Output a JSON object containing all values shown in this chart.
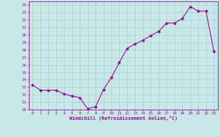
{
  "x": [
    0,
    1,
    2,
    3,
    4,
    5,
    6,
    7,
    8,
    9,
    10,
    11,
    12,
    13,
    14,
    15,
    16,
    17,
    18,
    19,
    20,
    21,
    22,
    23
  ],
  "y": [
    13.3,
    12.6,
    12.6,
    12.6,
    12.1,
    11.8,
    11.6,
    10.1,
    10.4,
    12.7,
    14.3,
    16.3,
    18.2,
    18.8,
    19.3,
    19.9,
    20.5,
    21.6,
    21.6,
    22.2,
    23.8,
    23.2,
    23.2,
    17.8
  ],
  "line_color": "#990099",
  "marker": "D",
  "marker_size": 2.0,
  "bg_color": "#c8e8e8",
  "grid_color": "#aacccc",
  "xlabel": "Windchill (Refroidissement éolien,°C)",
  "yticks": [
    10,
    11,
    12,
    13,
    14,
    15,
    16,
    17,
    18,
    19,
    20,
    21,
    22,
    23,
    24
  ],
  "xticks": [
    0,
    1,
    2,
    3,
    4,
    5,
    6,
    7,
    8,
    9,
    10,
    11,
    12,
    13,
    14,
    15,
    16,
    17,
    18,
    19,
    20,
    21,
    22,
    23
  ],
  "xlim": [
    -0.5,
    23.5
  ],
  "ylim": [
    10,
    24.5
  ],
  "axis_label_color": "#990099",
  "tick_color": "#990099",
  "spine_color": "#990099"
}
